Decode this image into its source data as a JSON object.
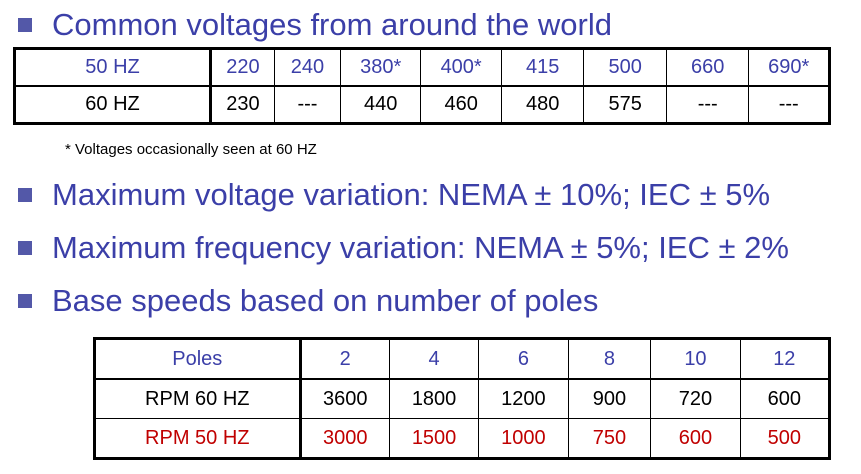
{
  "bullets": [
    "Common voltages from around the world",
    "Maximum voltage variation: NEMA ± 10%; IEC ± 5%",
    "Maximum frequency variation: NEMA ± 5%; IEC ± 2%",
    "Base speeds based on number of poles"
  ],
  "voltage_table": {
    "row1": [
      "50 HZ",
      "220",
      "240",
      "380*",
      "400*",
      "415",
      "500",
      "660",
      "690*"
    ],
    "row2": [
      "60 HZ",
      "230",
      "---",
      "440",
      "460",
      "480",
      "575",
      "---",
      "---"
    ]
  },
  "footnote": "* Voltages occasionally seen at 60 HZ",
  "speed_table": {
    "header": [
      "Poles",
      "2",
      "4",
      "6",
      "8",
      "10",
      "12"
    ],
    "rpm60": [
      "RPM 60 HZ",
      "3600",
      "1800",
      "1200",
      "900",
      "720",
      "600"
    ],
    "rpm50": [
      "RPM 50 HZ",
      "3000",
      "1500",
      "1000",
      "750",
      "600",
      "500"
    ]
  },
  "colors": {
    "accent": "#3b3fa8",
    "bullet": "#5358a8",
    "red": "#c00000"
  }
}
